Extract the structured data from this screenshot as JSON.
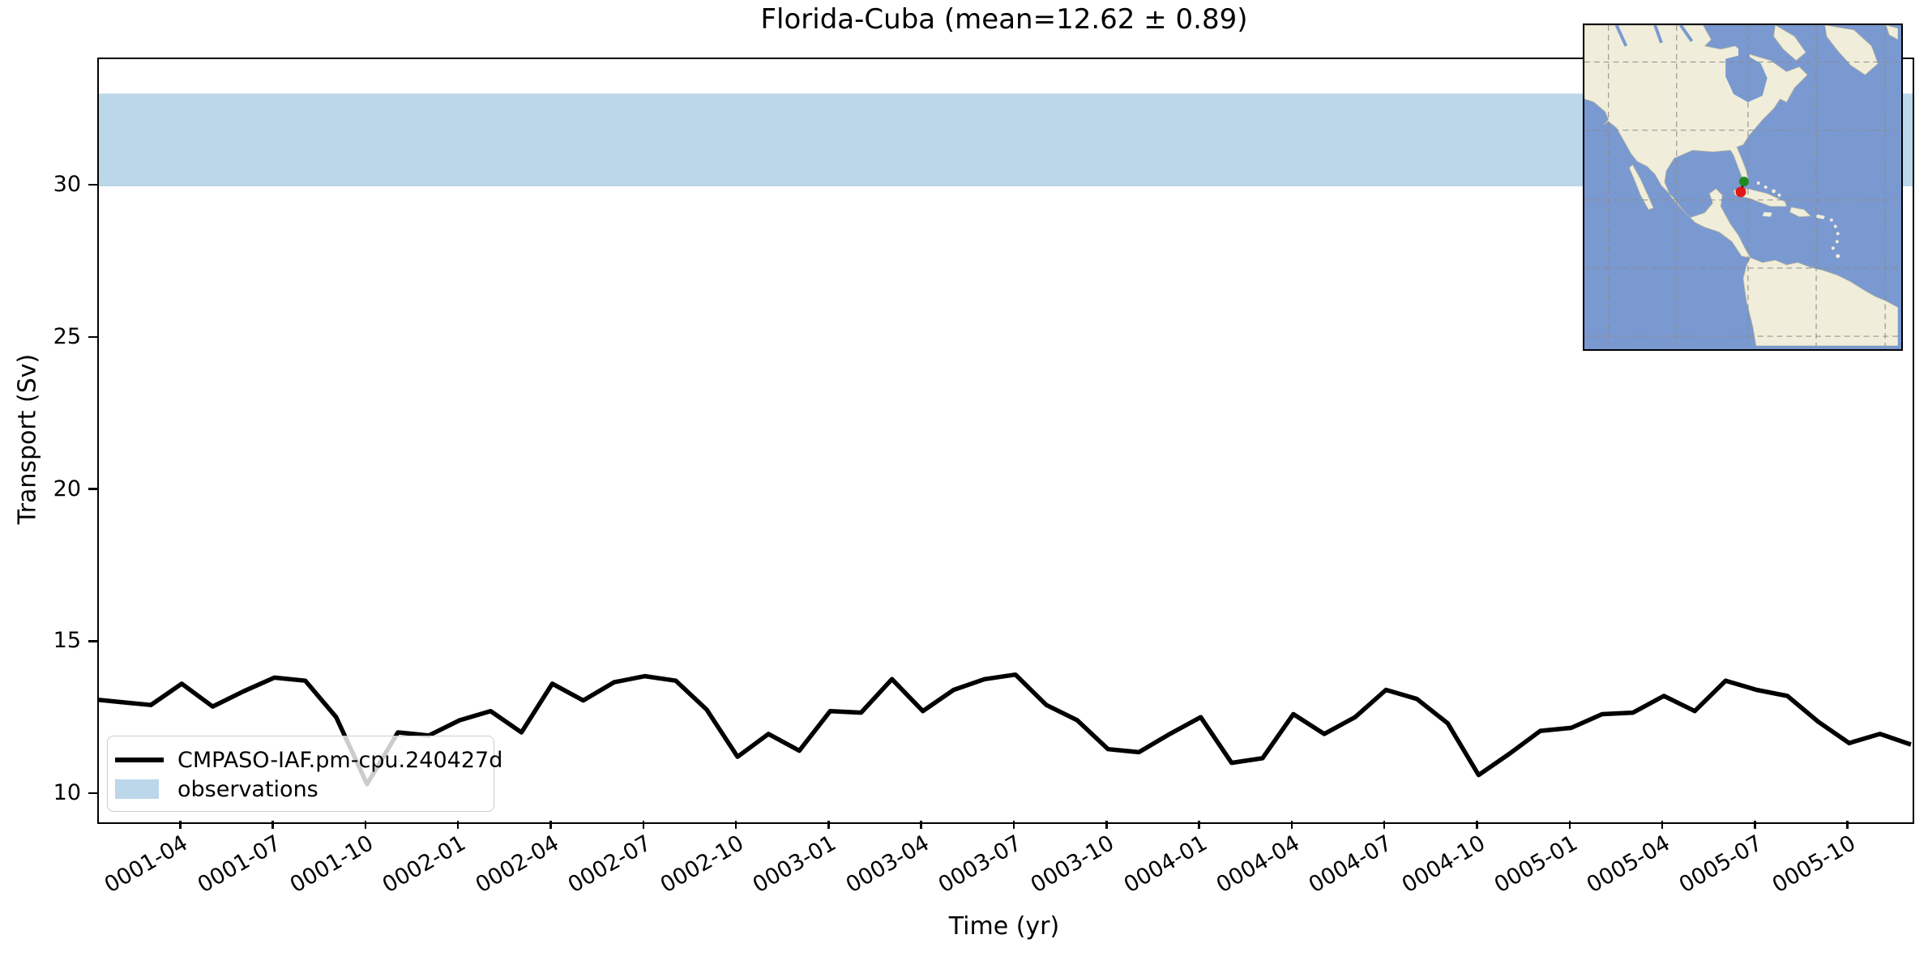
{
  "title": "Florida-Cuba (mean=12.62 ± 0.89)",
  "xlabel": "Time (yr)",
  "ylabel": "Transport (Sv)",
  "legend": {
    "series_label": "CMPASO-IAF.pm-cpu.240427d",
    "band_label": "observations"
  },
  "colors": {
    "line": "#000000",
    "band": "#bcd6ea",
    "map_ocean": "#7a99d1",
    "map_land": "#f0eedb",
    "marker_green": "#1f8b1f",
    "marker_red": "#e21717"
  },
  "chart_data": {
    "type": "line",
    "title": "Florida-Cuba (mean=12.62 ± 0.89)",
    "xlabel": "Time (yr)",
    "ylabel": "Transport (Sv)",
    "yticks": [
      10,
      15,
      20,
      25,
      30
    ],
    "ylim": [
      8.7,
      34.3
    ],
    "grid": false,
    "legend_position": "lower left",
    "x": [
      "0001-01",
      "0001-02",
      "0001-03",
      "0001-04",
      "0001-05",
      "0001-06",
      "0001-07",
      "0001-08",
      "0001-09",
      "0001-10",
      "0001-11",
      "0001-12",
      "0002-01",
      "0002-02",
      "0002-03",
      "0002-04",
      "0002-05",
      "0002-06",
      "0002-07",
      "0002-08",
      "0002-09",
      "0002-10",
      "0002-11",
      "0002-12",
      "0003-01",
      "0003-02",
      "0003-03",
      "0003-04",
      "0003-05",
      "0003-06",
      "0003-07",
      "0003-08",
      "0003-09",
      "0003-10",
      "0003-11",
      "0003-12",
      "0004-01",
      "0004-02",
      "0004-03",
      "0004-04",
      "0004-05",
      "0004-06",
      "0004-07",
      "0004-08",
      "0004-09",
      "0004-10",
      "0004-11",
      "0004-12",
      "0005-01",
      "0005-02",
      "0005-03",
      "0005-04",
      "0005-05",
      "0005-06",
      "0005-07",
      "0005-08",
      "0005-09",
      "0005-10",
      "0005-11",
      "0005-12"
    ],
    "xtick_labels": [
      "0001-04",
      "0001-07",
      "0001-10",
      "0002-01",
      "0002-04",
      "0002-07",
      "0002-10",
      "0003-01",
      "0003-04",
      "0003-07",
      "0003-10",
      "0004-01",
      "0004-04",
      "0004-07",
      "0004-10",
      "0005-01",
      "0005-04",
      "0005-07",
      "0005-10"
    ],
    "series": [
      {
        "name": "CMPASO-IAF.pm-cpu.240427d",
        "color": "#000000",
        "values": [
          13.15,
          13.05,
          12.95,
          13.65,
          12.9,
          13.4,
          13.85,
          13.75,
          12.55,
          10.35,
          12.05,
          11.95,
          12.45,
          12.75,
          12.05,
          13.65,
          13.1,
          13.7,
          13.9,
          13.75,
          12.8,
          11.25,
          12.0,
          11.45,
          12.75,
          12.7,
          13.8,
          12.75,
          13.45,
          13.8,
          13.95,
          12.95,
          12.45,
          11.5,
          11.4,
          12.0,
          12.55,
          11.05,
          11.2,
          12.65,
          12.0,
          12.55,
          13.45,
          13.15,
          12.35,
          10.65,
          11.35,
          12.1,
          12.2,
          12.65,
          12.7,
          13.25,
          12.75,
          13.75,
          13.45,
          13.25,
          12.4,
          11.7,
          12.0,
          11.65
        ]
      }
    ],
    "observation_band": {
      "label": "observations",
      "ymin": 30.0,
      "ymax": 33.05,
      "color": "#bcd6ea"
    },
    "mean": 12.62,
    "std": 0.89
  },
  "inset_map": {
    "markers": [
      {
        "name": "green-endpoint",
        "color": "#1f8b1f"
      },
      {
        "name": "red-endpoint",
        "color": "#e21717"
      }
    ]
  }
}
